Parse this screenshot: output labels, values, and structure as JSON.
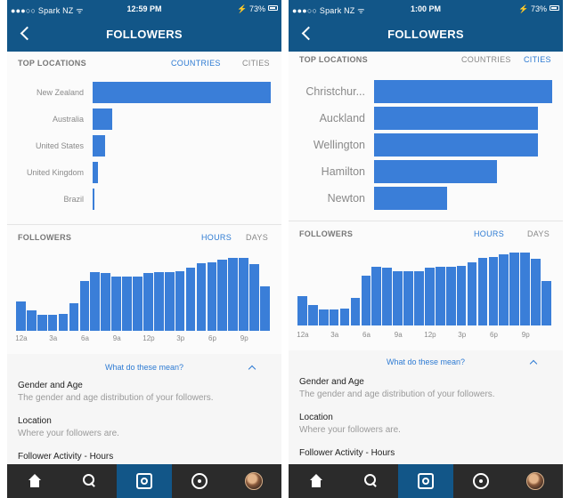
{
  "screens": [
    {
      "status": {
        "carrier": "●●●○○ Spark NZ ᯤ",
        "time": "12:59 PM",
        "battery": "⚡ 73%"
      },
      "nav": {
        "title": "FOLLOWERS"
      },
      "locations": {
        "section_title": "TOP LOCATIONS",
        "toggle_left": "COUNTRIES",
        "toggle_right": "CITIES",
        "active_toggle": "COUNTRIES",
        "items": [
          {
            "label": "New Zealand",
            "fraction": 1.0
          },
          {
            "label": "Australia",
            "fraction": 0.11
          },
          {
            "label": "United States",
            "fraction": 0.07
          },
          {
            "label": "United Kingdom",
            "fraction": 0.03
          },
          {
            "label": "Brazil",
            "fraction": 0.01
          }
        ]
      },
      "followers": {
        "section_title": "FOLLOWERS",
        "toggle_left": "HOURS",
        "toggle_right": "DAYS",
        "active_toggle": "HOURS",
        "hours": [
          0.4,
          0.28,
          0.22,
          0.22,
          0.23,
          0.38,
          0.68,
          0.8,
          0.79,
          0.75,
          0.74,
          0.75,
          0.79,
          0.8,
          0.8,
          0.82,
          0.87,
          0.93,
          0.94,
          0.97,
          1.0,
          1.0,
          0.91,
          0.61
        ],
        "axis_labels": [
          "12a",
          "3a",
          "6a",
          "9a",
          "12p",
          "3p",
          "6p",
          "9p"
        ]
      },
      "info": {
        "link": "What do these mean?",
        "items": [
          {
            "title": "Gender and Age",
            "desc": "The gender and age distribution of your followers."
          },
          {
            "title": "Location",
            "desc": "Where your followers are."
          },
          {
            "title": "Follower Activity - Hours",
            "desc": ""
          }
        ]
      }
    },
    {
      "status": {
        "carrier": "●●●○○ Spark NZ ᯤ",
        "time": "1:00 PM",
        "battery": "⚡ 73%"
      },
      "nav": {
        "title": "FOLLOWERS"
      },
      "locations": {
        "section_title": "TOP LOCATIONS",
        "toggle_left": "COUNTRIES",
        "toggle_right": "CITIES",
        "active_toggle": "CITIES",
        "items": [
          {
            "label": "Christchur...",
            "fraction": 1.0
          },
          {
            "label": "Auckland",
            "fraction": 0.92
          },
          {
            "label": "Wellington",
            "fraction": 0.92
          },
          {
            "label": "Hamilton",
            "fraction": 0.69
          },
          {
            "label": "Newton",
            "fraction": 0.41
          }
        ]
      },
      "followers": {
        "section_title": "FOLLOWERS",
        "toggle_left": "HOURS",
        "toggle_right": "DAYS",
        "active_toggle": "HOURS",
        "hours": [
          0.4,
          0.28,
          0.22,
          0.22,
          0.23,
          0.38,
          0.68,
          0.8,
          0.79,
          0.75,
          0.74,
          0.75,
          0.79,
          0.8,
          0.8,
          0.82,
          0.87,
          0.93,
          0.94,
          0.97,
          1.0,
          1.0,
          0.91,
          0.61
        ],
        "axis_labels": [
          "12a",
          "3a",
          "6a",
          "9a",
          "12p",
          "3p",
          "6p",
          "9p"
        ]
      },
      "info": {
        "link": "What do these mean?",
        "items": [
          {
            "title": "Gender and Age",
            "desc": "The gender and age distribution of your followers."
          },
          {
            "title": "Location",
            "desc": "Where your followers are."
          },
          {
            "title": "Follower Activity - Hours",
            "desc": ""
          }
        ]
      }
    }
  ],
  "tabbar": {
    "icons": [
      "home-icon",
      "search-icon",
      "camera-icon",
      "activity-icon",
      "avatar-icon"
    ],
    "active_index": 2
  },
  "colors": {
    "header": "#125688",
    "accent": "#2e7bd3",
    "bar": "#3a7ed8",
    "tabbar": "#2b2b2b"
  }
}
